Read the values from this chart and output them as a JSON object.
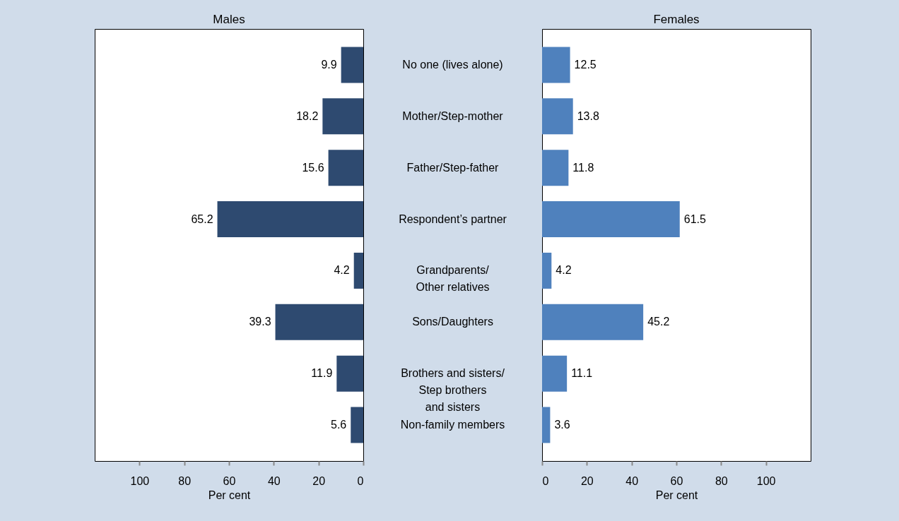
{
  "chart_data": [
    {
      "type": "bar",
      "title": "Males",
      "orientation": "horizontal",
      "categories": [
        "No one (lives alone)",
        "Mother/Step-mother",
        "Father/Step-father",
        "Respondent’s partner",
        "Grandparents/\nOther relatives",
        "Sons/Daughters",
        "Brothers and sisters/\nStep brothers\nand sisters",
        "Non-family members"
      ],
      "values": [
        9.9,
        18.2,
        15.6,
        65.2,
        4.2,
        39.3,
        11.9,
        5.6
      ],
      "color": "#2e4a70",
      "xlim": [
        120,
        0
      ],
      "xticks": [
        100,
        80,
        60,
        40,
        20,
        0
      ],
      "xlabel": "Per cent",
      "data_labels": true,
      "grid": false
    },
    {
      "type": "bar",
      "title": "Females",
      "orientation": "horizontal",
      "categories": [
        null,
        null,
        null,
        null,
        null,
        null,
        null,
        null
      ],
      "values": [
        12.5,
        13.8,
        11.8,
        61.5,
        4.2,
        45.2,
        11.1,
        3.6
      ],
      "color": "#4f81bd",
      "xlim": [
        0,
        120
      ],
      "xticks": [
        0,
        20,
        40,
        60,
        80,
        100
      ],
      "xlabel": "Per cent",
      "data_labels": true,
      "grid": false
    }
  ]
}
